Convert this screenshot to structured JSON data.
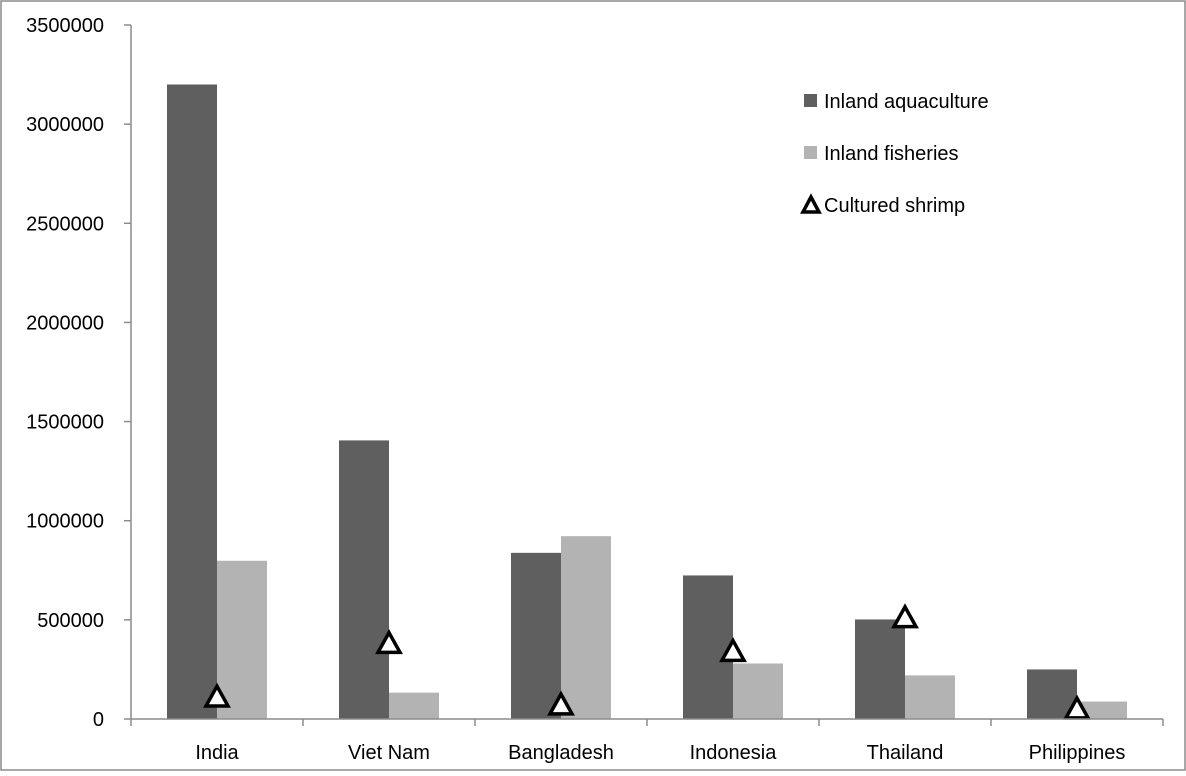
{
  "chart_data": {
    "type": "bar",
    "title": "",
    "xlabel": "",
    "ylabel": "",
    "ylim": [
      0,
      3500000
    ],
    "yticks": [
      0,
      500000,
      1000000,
      1500000,
      2000000,
      2500000,
      3000000,
      3500000
    ],
    "categories": [
      "India",
      "Viet Nam",
      "Bangladesh",
      "Indonesia",
      "Thailand",
      "Philippines"
    ],
    "grid": false,
    "legend_position": "top-right",
    "series": [
      {
        "name": "Inland aquaculture",
        "kind": "bar",
        "color": "#5f5f5f",
        "values": [
          3200000,
          1405000,
          838000,
          724000,
          502000,
          250000
        ]
      },
      {
        "name": "Inland fisheries",
        "kind": "bar",
        "color": "#b3b3b3",
        "values": [
          798000,
          133000,
          922000,
          280000,
          220000,
          88000
        ]
      },
      {
        "name": "Cultured shrimp",
        "kind": "marker",
        "marker": "triangle-outline",
        "color": "#000000",
        "values": [
          100000,
          370000,
          60000,
          330000,
          500000,
          40000
        ]
      }
    ]
  }
}
